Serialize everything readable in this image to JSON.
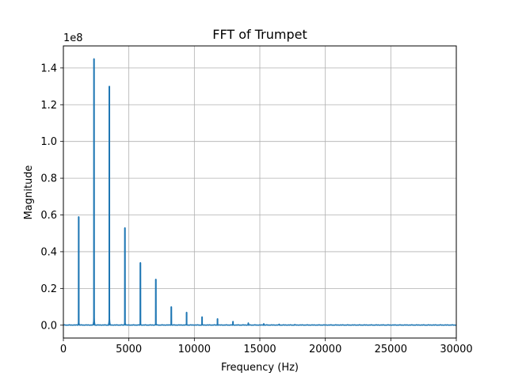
{
  "chart_data": {
    "type": "line",
    "title": "FFT of Trumpet",
    "xlabel": "Frequency (Hz)",
    "ylabel": "Magnitude",
    "y_offset_label": "1e8",
    "xlim": [
      0,
      30000
    ],
    "ylim": [
      -0.07,
      1.52
    ],
    "y_scale": 100000000,
    "grid": true,
    "line_color": "#1f77b4",
    "x_ticks": [
      0,
      5000,
      10000,
      15000,
      20000,
      25000,
      30000
    ],
    "x_tick_labels": [
      "0",
      "5000",
      "10000",
      "15000",
      "20000",
      "25000",
      "30000"
    ],
    "y_ticks": [
      0.0,
      0.2,
      0.4,
      0.6,
      0.8,
      1.0,
      1.2,
      1.4
    ],
    "y_tick_labels": [
      "0.0",
      "0.2",
      "0.4",
      "0.6",
      "0.8",
      "1.0",
      "1.2",
      "1.4"
    ],
    "series": [
      {
        "peaks": [
          {
            "frequency": 1170,
            "magnitude": 0.59
          },
          {
            "frequency": 2340,
            "magnitude": 1.45
          },
          {
            "frequency": 3510,
            "magnitude": 1.3
          },
          {
            "frequency": 4700,
            "magnitude": 0.53
          },
          {
            "frequency": 5880,
            "magnitude": 0.34
          },
          {
            "frequency": 7060,
            "magnitude": 0.25
          },
          {
            "frequency": 8240,
            "magnitude": 0.1
          },
          {
            "frequency": 9410,
            "magnitude": 0.07
          },
          {
            "frequency": 10590,
            "magnitude": 0.045
          },
          {
            "frequency": 11770,
            "magnitude": 0.035
          },
          {
            "frequency": 12950,
            "magnitude": 0.02
          },
          {
            "frequency": 14120,
            "magnitude": 0.012
          },
          {
            "frequency": 15300,
            "magnitude": 0.008
          },
          {
            "frequency": 16480,
            "magnitude": 0.005
          },
          {
            "frequency": 17650,
            "magnitude": 0.003
          }
        ]
      }
    ]
  }
}
